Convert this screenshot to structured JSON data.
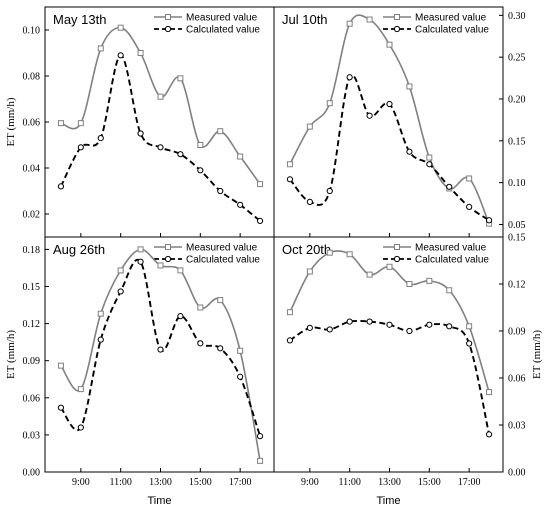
{
  "chart_data": [
    {
      "type": "line",
      "title": "May 13th",
      "ylabel": "ET (mm/h)",
      "xlabel": "",
      "ylim": [
        0.01,
        0.11
      ],
      "yticks": [
        0.02,
        0.04,
        0.06,
        0.08,
        0.1
      ],
      "ytick_labels": [
        "0.02",
        "0.04",
        "0.06",
        "0.08",
        "0.10"
      ],
      "xlim": [
        7.2,
        18.7
      ],
      "xticks": [
        9,
        11,
        13,
        15,
        17
      ],
      "xtick_labels": [],
      "yaxis_side": "left",
      "legend_position": "top-right",
      "series": [
        {
          "name": "Measured value",
          "color": "#808080",
          "marker": "square",
          "style": "solid",
          "x": [
            8,
            9,
            10,
            11,
            12,
            13,
            14,
            15,
            16,
            17,
            18
          ],
          "y": [
            0.0595,
            0.0595,
            0.092,
            0.101,
            0.09,
            0.071,
            0.079,
            0.05,
            0.056,
            0.045,
            0.033
          ]
        },
        {
          "name": "Calculated value",
          "color": "#000000",
          "marker": "circle",
          "style": "dashed",
          "x": [
            8,
            9,
            10,
            11,
            12,
            13,
            14,
            15,
            16,
            17,
            18
          ],
          "y": [
            0.032,
            0.049,
            0.053,
            0.089,
            0.055,
            0.049,
            0.046,
            0.039,
            0.03,
            0.024,
            0.017
          ]
        }
      ]
    },
    {
      "type": "line",
      "title": "Jul 10th",
      "ylabel": "",
      "xlabel": "",
      "ylim": [
        0.035,
        0.31
      ],
      "yticks": [
        0.05,
        0.1,
        0.15,
        0.2,
        0.25,
        0.3
      ],
      "ytick_labels": [
        "0.05",
        "0.10",
        "0.15",
        "0.20",
        "0.25",
        "0.30"
      ],
      "xlim": [
        7.2,
        18.7
      ],
      "xticks": [
        9,
        11,
        13,
        15,
        17
      ],
      "xtick_labels": [],
      "yaxis_side": "right",
      "legend_position": "top-right",
      "series": [
        {
          "name": "Measured value",
          "color": "#808080",
          "marker": "square",
          "style": "solid",
          "x": [
            8,
            9,
            10,
            11,
            12,
            13,
            14,
            15,
            16,
            17,
            18
          ],
          "y": [
            0.122,
            0.167,
            0.195,
            0.29,
            0.295,
            0.265,
            0.215,
            0.13,
            0.093,
            0.105,
            0.051
          ]
        },
        {
          "name": "Calculated value",
          "color": "#000000",
          "marker": "circle",
          "style": "dashed",
          "x": [
            8,
            9,
            10,
            11,
            12,
            13,
            14,
            15,
            16,
            17,
            18
          ],
          "y": [
            0.104,
            0.077,
            0.09,
            0.226,
            0.18,
            0.194,
            0.137,
            0.122,
            0.095,
            0.071,
            0.055
          ]
        }
      ]
    },
    {
      "type": "line",
      "title": "Aug 26th",
      "ylabel": "ET (mm/h)",
      "xlabel": "Time",
      "ylim": [
        0.0,
        0.19
      ],
      "yticks": [
        0.0,
        0.03,
        0.06,
        0.09,
        0.12,
        0.15,
        0.18
      ],
      "ytick_labels": [
        "0.00",
        "0.03",
        "0.06",
        "0.09",
        "0.12",
        "0.15",
        "0.18"
      ],
      "xlim": [
        7.2,
        18.7
      ],
      "xticks": [
        9,
        11,
        13,
        15,
        17
      ],
      "xtick_labels": [
        "9:00",
        "11:00",
        "13:00",
        "15:00",
        "17:00"
      ],
      "yaxis_side": "left",
      "legend_position": "top-right",
      "series": [
        {
          "name": "Measured value",
          "color": "#808080",
          "marker": "square",
          "style": "solid",
          "x": [
            8,
            9,
            10,
            11,
            12,
            13,
            14,
            15,
            16,
            17,
            18
          ],
          "y": [
            0.086,
            0.067,
            0.128,
            0.163,
            0.18,
            0.167,
            0.163,
            0.133,
            0.139,
            0.098,
            0.009
          ]
        },
        {
          "name": "Calculated value",
          "color": "#000000",
          "marker": "circle",
          "style": "dashed",
          "x": [
            8,
            9,
            10,
            11,
            12,
            13,
            14,
            15,
            16,
            17,
            18
          ],
          "y": [
            0.052,
            0.036,
            0.107,
            0.146,
            0.17,
            0.099,
            0.126,
            0.104,
            0.1,
            0.077,
            0.029
          ]
        }
      ]
    },
    {
      "type": "line",
      "title": "Oct 20th",
      "ylabel": "ET (mm/h)",
      "xlabel": "Time",
      "ylim": [
        0.0,
        0.15
      ],
      "yticks": [
        0.0,
        0.03,
        0.06,
        0.09,
        0.12,
        0.15
      ],
      "ytick_labels": [
        "0.00",
        "0.03",
        "0.06",
        "0.09",
        "0.12",
        "0.15"
      ],
      "xlim": [
        7.2,
        18.7
      ],
      "xticks": [
        9,
        11,
        13,
        15,
        17
      ],
      "xtick_labels": [
        "9:00",
        "11:00",
        "13:00",
        "15:00",
        "17:00"
      ],
      "yaxis_side": "right",
      "legend_position": "top-right",
      "series": [
        {
          "name": "Measured value",
          "color": "#808080",
          "marker": "square",
          "style": "solid",
          "x": [
            8,
            9,
            10,
            11,
            12,
            13,
            14,
            15,
            16,
            17,
            18
          ],
          "y": [
            0.102,
            0.128,
            0.14,
            0.139,
            0.126,
            0.131,
            0.12,
            0.122,
            0.116,
            0.093,
            0.051
          ]
        },
        {
          "name": "Calculated value",
          "color": "#000000",
          "marker": "circle",
          "style": "dashed",
          "x": [
            8,
            9,
            10,
            11,
            12,
            13,
            14,
            15,
            16,
            17,
            18
          ],
          "y": [
            0.084,
            0.092,
            0.091,
            0.096,
            0.096,
            0.094,
            0.09,
            0.094,
            0.093,
            0.082,
            0.024
          ]
        }
      ]
    }
  ]
}
